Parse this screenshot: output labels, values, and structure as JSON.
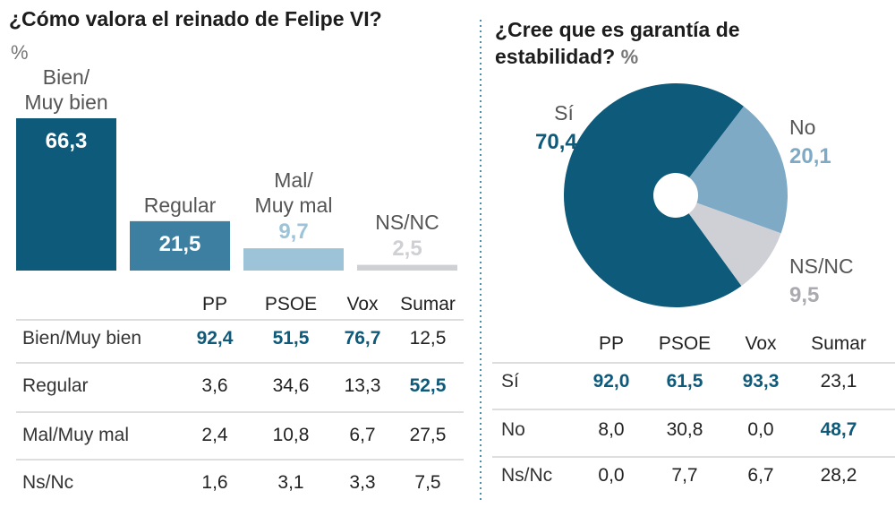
{
  "chart_data": [
    {
      "type": "bar",
      "title": "¿Cómo valora el reinado de Felipe VI?",
      "unit": "%",
      "categories": [
        "Bien/\nMuy bien",
        "Regular",
        "Mal/\nMuy mal",
        "NS/NC"
      ],
      "values": [
        66.3,
        21.5,
        9.7,
        2.5
      ],
      "value_labels": [
        "66,3",
        "21,5",
        "9,7",
        "2,5"
      ],
      "colors": [
        "#0e5a7a",
        "#3d7fa0",
        "#9cc3d8",
        "#cfd0d3"
      ]
    },
    {
      "type": "pie",
      "title": "¿Cree que es garantía de estabilidad?",
      "unit": "%",
      "categories": [
        "Sí",
        "No",
        "NS/NC"
      ],
      "values": [
        70.4,
        20.1,
        9.5
      ],
      "value_labels": [
        "70,4",
        "20,1",
        "9,5"
      ],
      "colors": [
        "#0e5a7a",
        "#7eaac6",
        "#cfd0d5"
      ]
    }
  ],
  "tables": [
    {
      "columns": [
        "PP",
        "PSOE",
        "Vox",
        "Sumar"
      ],
      "rows": [
        {
          "label": "Bien/Muy bien",
          "cells": [
            "92,4",
            "51,5",
            "76,7",
            "12,5"
          ],
          "highlight": [
            0,
            1,
            2
          ]
        },
        {
          "label": "Regular",
          "cells": [
            "3,6",
            "34,6",
            "13,3",
            "52,5"
          ],
          "highlight": [
            3
          ]
        },
        {
          "label": "Mal/Muy mal",
          "cells": [
            "2,4",
            "10,8",
            "6,7",
            "27,5"
          ],
          "highlight": []
        },
        {
          "label": "Ns/Nc",
          "cells": [
            "1,6",
            "3,1",
            "3,3",
            "7,5"
          ],
          "highlight": []
        }
      ]
    },
    {
      "columns": [
        "PP",
        "PSOE",
        "Vox",
        "Sumar"
      ],
      "rows": [
        {
          "label": "Sí",
          "cells": [
            "92,0",
            "61,5",
            "93,3",
            "23,1"
          ],
          "highlight": [
            0,
            1,
            2
          ]
        },
        {
          "label": "No",
          "cells": [
            "8,0",
            "30,8",
            "0,0",
            "48,7"
          ],
          "highlight": [
            3
          ]
        },
        {
          "label": "Ns/Nc",
          "cells": [
            "0,0",
            "7,7",
            "6,7",
            "28,2"
          ],
          "highlight": []
        }
      ]
    }
  ]
}
